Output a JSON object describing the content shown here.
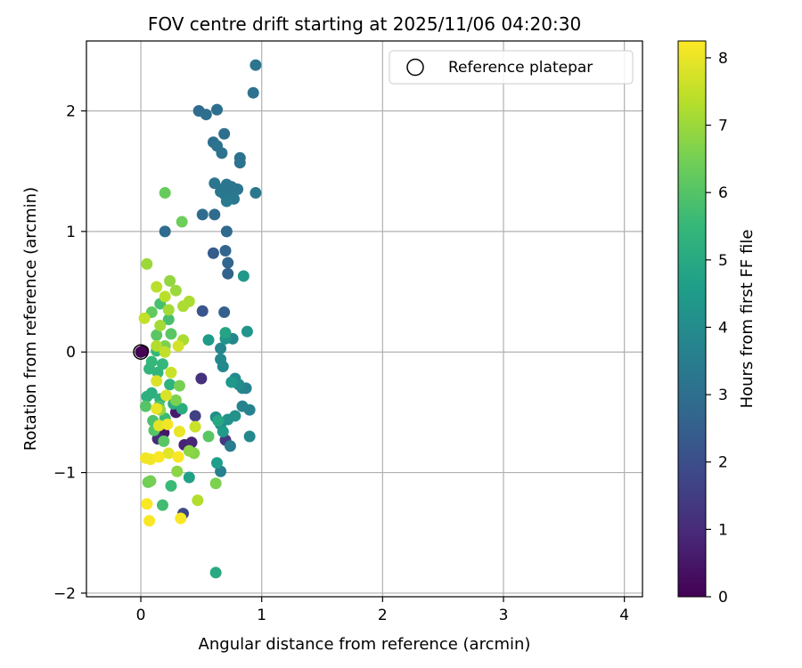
{
  "chart_data": {
    "type": "scatter",
    "title": "FOV centre drift starting at 2025/11/06 04:20:30",
    "xlabel": "Angular distance from reference (arcmin)",
    "ylabel": "Rotation from reference (arcmin)",
    "xlim": [
      -0.45,
      4.15
    ],
    "ylim": [
      -2.03,
      2.58
    ],
    "xticks": [
      0,
      1,
      2,
      3,
      4
    ],
    "xtick_labels": [
      "0",
      "1",
      "2",
      "3",
      "4"
    ],
    "yticks": [
      -2,
      -1,
      0,
      1,
      2
    ],
    "ytick_labels": [
      "−2",
      "−1",
      "0",
      "1",
      "2"
    ],
    "grid": true,
    "legend": {
      "position": "top-right",
      "entries": [
        "Reference platepar"
      ]
    },
    "reference_point": {
      "x": 0,
      "y": 0
    },
    "colorbar": {
      "label": "Hours from first FF file",
      "min": 0,
      "max": 8.25,
      "ticks": [
        0,
        1,
        2,
        3,
        4,
        5,
        6,
        7,
        8
      ],
      "tick_labels": [
        "0",
        "1",
        "2",
        "3",
        "4",
        "5",
        "6",
        "7",
        "8"
      ],
      "colormap": [
        "#440154",
        "#482878",
        "#3e4989",
        "#31688e",
        "#26828e",
        "#1f9e89",
        "#35b779",
        "#6ece58",
        "#b5de2b",
        "#fde725"
      ]
    },
    "points": [
      {
        "x": 0.02,
        "y": 0.01,
        "t": 0.0
      },
      {
        "x": 0.19,
        "y": -0.67,
        "t": 0.5
      },
      {
        "x": 0.29,
        "y": -0.5,
        "t": 0.6
      },
      {
        "x": 0.36,
        "y": -0.77,
        "t": 0.8
      },
      {
        "x": 0.42,
        "y": -0.75,
        "t": 0.9
      },
      {
        "x": 0.14,
        "y": -0.72,
        "t": 1.0
      },
      {
        "x": 0.5,
        "y": -0.22,
        "t": 1.2
      },
      {
        "x": 0.7,
        "y": -0.73,
        "t": 1.4
      },
      {
        "x": 0.45,
        "y": -0.53,
        "t": 1.6
      },
      {
        "x": 0.35,
        "y": -1.34,
        "t": 1.8
      },
      {
        "x": 0.51,
        "y": 0.34,
        "t": 2.2
      },
      {
        "x": 0.6,
        "y": 0.82,
        "t": 2.4
      },
      {
        "x": 0.69,
        "y": 0.33,
        "t": 2.5
      },
      {
        "x": 0.72,
        "y": 0.65,
        "t": 2.6
      },
      {
        "x": 0.7,
        "y": 0.84,
        "t": 2.7
      },
      {
        "x": 0.72,
        "y": 0.74,
        "t": 2.7
      },
      {
        "x": 0.71,
        "y": 1.0,
        "t": 2.8
      },
      {
        "x": 0.2,
        "y": 1.0,
        "t": 2.9
      },
      {
        "x": 0.61,
        "y": 1.14,
        "t": 2.9
      },
      {
        "x": 0.51,
        "y": 1.14,
        "t": 2.9
      },
      {
        "x": 0.48,
        "y": 2.0,
        "t": 2.9
      },
      {
        "x": 0.54,
        "y": 1.97,
        "t": 3.0
      },
      {
        "x": 0.63,
        "y": 2.01,
        "t": 3.0
      },
      {
        "x": 0.69,
        "y": 1.81,
        "t": 3.0
      },
      {
        "x": 0.6,
        "y": 1.74,
        "t": 3.0
      },
      {
        "x": 0.63,
        "y": 1.71,
        "t": 3.1
      },
      {
        "x": 0.67,
        "y": 1.65,
        "t": 3.1
      },
      {
        "x": 0.82,
        "y": 1.61,
        "t": 3.1
      },
      {
        "x": 0.82,
        "y": 1.57,
        "t": 3.1
      },
      {
        "x": 0.93,
        "y": 2.15,
        "t": 3.1
      },
      {
        "x": 0.95,
        "y": 2.38,
        "t": 3.2
      },
      {
        "x": 0.61,
        "y": 1.4,
        "t": 3.2
      },
      {
        "x": 0.67,
        "y": 1.35,
        "t": 3.2
      },
      {
        "x": 0.69,
        "y": 1.31,
        "t": 3.2
      },
      {
        "x": 0.71,
        "y": 1.39,
        "t": 3.2
      },
      {
        "x": 0.75,
        "y": 1.37,
        "t": 3.2
      },
      {
        "x": 0.8,
        "y": 1.35,
        "t": 3.2
      },
      {
        "x": 0.73,
        "y": 1.29,
        "t": 3.3
      },
      {
        "x": 0.77,
        "y": 1.27,
        "t": 3.3
      },
      {
        "x": 0.95,
        "y": 1.32,
        "t": 3.3
      },
      {
        "x": 0.66,
        "y": 1.33,
        "t": 3.3
      },
      {
        "x": 0.71,
        "y": 1.25,
        "t": 3.4
      },
      {
        "x": 0.74,
        "y": -0.78,
        "t": 3.5
      },
      {
        "x": 0.66,
        "y": -0.99,
        "t": 3.6
      },
      {
        "x": 0.84,
        "y": -0.3,
        "t": 3.7
      },
      {
        "x": 0.87,
        "y": -0.3,
        "t": 3.7
      },
      {
        "x": 0.9,
        "y": -0.48,
        "t": 3.7
      },
      {
        "x": 0.84,
        "y": -0.45,
        "t": 3.7
      },
      {
        "x": 0.76,
        "y": 0.11,
        "t": 3.8
      },
      {
        "x": 0.66,
        "y": 0.03,
        "t": 3.8
      },
      {
        "x": 0.66,
        "y": -0.06,
        "t": 3.9
      },
      {
        "x": 0.68,
        "y": -0.12,
        "t": 3.9
      },
      {
        "x": 0.9,
        "y": -0.7,
        "t": 3.9
      },
      {
        "x": 0.78,
        "y": -0.22,
        "t": 4.0
      },
      {
        "x": 0.81,
        "y": -0.27,
        "t": 4.0
      },
      {
        "x": 0.66,
        "y": -0.6,
        "t": 4.0
      },
      {
        "x": 0.62,
        "y": -0.54,
        "t": 4.1
      },
      {
        "x": 0.72,
        "y": -0.56,
        "t": 4.2
      },
      {
        "x": 0.78,
        "y": -0.53,
        "t": 4.2
      },
      {
        "x": 0.88,
        "y": 0.17,
        "t": 4.3
      },
      {
        "x": 0.7,
        "y": 0.11,
        "t": 4.3
      },
      {
        "x": 0.85,
        "y": 0.63,
        "t": 4.4
      },
      {
        "x": 0.75,
        "y": -0.25,
        "t": 4.4
      },
      {
        "x": 0.68,
        "y": -0.66,
        "t": 4.5
      },
      {
        "x": 0.56,
        "y": 0.1,
        "t": 4.5
      },
      {
        "x": 0.63,
        "y": -0.92,
        "t": 4.6
      },
      {
        "x": 0.4,
        "y": -1.04,
        "t": 4.7
      },
      {
        "x": 0.7,
        "y": 0.16,
        "t": 4.8
      },
      {
        "x": 0.64,
        "y": -0.57,
        "t": 4.9
      },
      {
        "x": 0.62,
        "y": -1.83,
        "t": 5.0
      },
      {
        "x": 0.34,
        "y": -0.47,
        "t": 5.1
      },
      {
        "x": 0.27,
        "y": -0.43,
        "t": 5.1
      },
      {
        "x": 0.05,
        "y": -0.37,
        "t": 5.2
      },
      {
        "x": 0.09,
        "y": -0.34,
        "t": 5.2
      },
      {
        "x": 0.16,
        "y": -0.39,
        "t": 5.3
      },
      {
        "x": 0.24,
        "y": -0.27,
        "t": 5.3
      },
      {
        "x": 0.07,
        "y": -0.14,
        "t": 5.4
      },
      {
        "x": 0.14,
        "y": -0.17,
        "t": 5.4
      },
      {
        "x": 0.18,
        "y": -0.1,
        "t": 5.5
      },
      {
        "x": 0.09,
        "y": -0.08,
        "t": 5.5
      },
      {
        "x": 0.13,
        "y": 0.01,
        "t": 5.5
      },
      {
        "x": 0.2,
        "y": -0.55,
        "t": 5.6
      },
      {
        "x": 0.25,
        "y": -1.11,
        "t": 5.6
      },
      {
        "x": 0.18,
        "y": -1.27,
        "t": 5.7
      },
      {
        "x": 0.16,
        "y": 0.4,
        "t": 5.8
      },
      {
        "x": 0.23,
        "y": 0.27,
        "t": 5.8
      },
      {
        "x": 0.1,
        "y": -0.57,
        "t": 5.9
      },
      {
        "x": 0.15,
        "y": -0.45,
        "t": 5.9
      },
      {
        "x": 0.04,
        "y": -0.45,
        "t": 6.0
      },
      {
        "x": 0.11,
        "y": -0.65,
        "t": 6.0
      },
      {
        "x": 0.19,
        "y": -0.74,
        "t": 6.1
      },
      {
        "x": 0.56,
        "y": -0.7,
        "t": 6.1
      },
      {
        "x": 0.25,
        "y": 0.15,
        "t": 6.1
      },
      {
        "x": 0.13,
        "y": 0.14,
        "t": 6.1
      },
      {
        "x": 0.09,
        "y": 0.33,
        "t": 6.2
      },
      {
        "x": 0.2,
        "y": 1.32,
        "t": 6.3
      },
      {
        "x": 0.34,
        "y": 1.08,
        "t": 6.4
      },
      {
        "x": 0.06,
        "y": -1.08,
        "t": 6.4
      },
      {
        "x": 0.08,
        "y": -1.07,
        "t": 6.5
      },
      {
        "x": 0.32,
        "y": -0.28,
        "t": 6.5
      },
      {
        "x": 0.29,
        "y": -0.4,
        "t": 6.6
      },
      {
        "x": 0.2,
        "y": 0.05,
        "t": 6.6
      },
      {
        "x": 0.62,
        "y": -1.09,
        "t": 6.6
      },
      {
        "x": 0.44,
        "y": -0.84,
        "t": 6.7
      },
      {
        "x": 0.4,
        "y": -0.82,
        "t": 6.8
      },
      {
        "x": 0.3,
        "y": -0.99,
        "t": 6.8
      },
      {
        "x": 0.16,
        "y": -0.48,
        "t": 6.9
      },
      {
        "x": 0.24,
        "y": 0.59,
        "t": 6.9
      },
      {
        "x": 0.29,
        "y": 0.51,
        "t": 7.0
      },
      {
        "x": 0.05,
        "y": 0.73,
        "t": 7.0
      },
      {
        "x": 0.16,
        "y": 0.22,
        "t": 7.1
      },
      {
        "x": 0.23,
        "y": 0.35,
        "t": 7.1
      },
      {
        "x": 0.35,
        "y": 0.38,
        "t": 7.2
      },
      {
        "x": 0.4,
        "y": 0.42,
        "t": 7.2
      },
      {
        "x": 0.35,
        "y": 0.1,
        "t": 7.2
      },
      {
        "x": 0.47,
        "y": -1.23,
        "t": 7.3
      },
      {
        "x": 0.13,
        "y": 0.05,
        "t": 7.3
      },
      {
        "x": 0.2,
        "y": 0.46,
        "t": 7.4
      },
      {
        "x": 0.13,
        "y": 0.54,
        "t": 7.4
      },
      {
        "x": 0.03,
        "y": 0.28,
        "t": 7.5
      },
      {
        "x": 0.2,
        "y": 0.0,
        "t": 7.5
      },
      {
        "x": 0.25,
        "y": -0.17,
        "t": 7.6
      },
      {
        "x": 0.45,
        "y": -0.62,
        "t": 7.6
      },
      {
        "x": 0.31,
        "y": 0.05,
        "t": 7.7
      },
      {
        "x": 0.21,
        "y": -0.36,
        "t": 7.8
      },
      {
        "x": 0.13,
        "y": -0.24,
        "t": 7.8
      },
      {
        "x": 0.23,
        "y": -0.84,
        "t": 7.9
      },
      {
        "x": 0.15,
        "y": -0.61,
        "t": 7.9
      },
      {
        "x": 0.13,
        "y": -0.47,
        "t": 8.0
      },
      {
        "x": 0.32,
        "y": -0.66,
        "t": 8.0
      },
      {
        "x": 0.22,
        "y": -0.6,
        "t": 8.1
      },
      {
        "x": 0.04,
        "y": -0.88,
        "t": 8.1
      },
      {
        "x": 0.08,
        "y": -0.89,
        "t": 8.1
      },
      {
        "x": 0.05,
        "y": -1.26,
        "t": 8.2
      },
      {
        "x": 0.07,
        "y": -1.4,
        "t": 8.2
      },
      {
        "x": 0.33,
        "y": -1.38,
        "t": 8.2
      },
      {
        "x": 0.15,
        "y": -0.87,
        "t": 8.2
      },
      {
        "x": 0.31,
        "y": -0.87,
        "t": 8.2
      }
    ]
  }
}
